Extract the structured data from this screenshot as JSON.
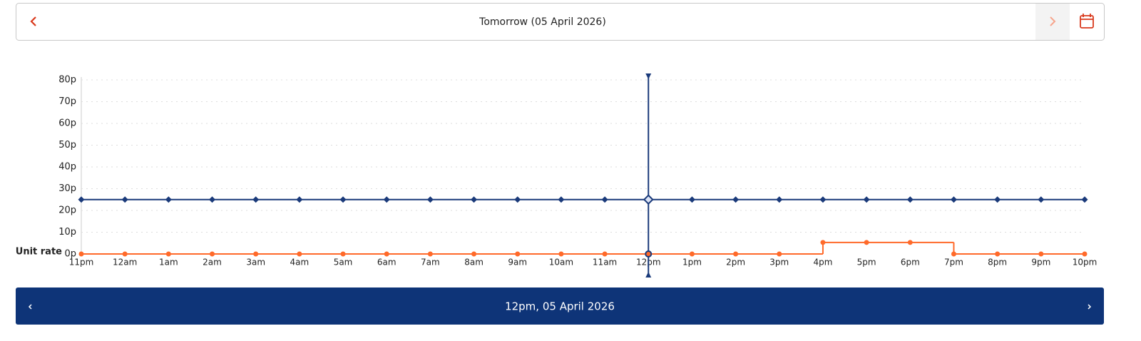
{
  "header": {
    "title": "Tomorrow (05 April 2026)"
  },
  "chart_data": {
    "type": "line",
    "y_label": "Unit rate",
    "categories": [
      "11pm",
      "12am",
      "1am",
      "2am",
      "3am",
      "4am",
      "5am",
      "6am",
      "7am",
      "8am",
      "9am",
      "10am",
      "11am",
      "12pm",
      "1pm",
      "2pm",
      "3pm",
      "4pm",
      "5pm",
      "6pm",
      "7pm",
      "8pm",
      "9pm",
      "10pm"
    ],
    "series": [
      {
        "color": "#1a3a7a",
        "marker": "diamond",
        "step": false,
        "values": [
          25,
          25,
          25,
          25,
          25,
          25,
          25,
          25,
          25,
          25,
          25,
          25,
          25,
          25,
          25,
          25,
          25,
          25,
          25,
          25,
          25,
          25,
          25,
          25
        ]
      },
      {
        "color": "#ff6a2a",
        "marker": "circle",
        "step": true,
        "values": [
          0,
          0,
          0,
          0,
          0,
          0,
          0,
          0,
          0,
          0,
          0,
          0,
          0,
          0,
          0,
          0,
          0,
          5.3,
          5.3,
          5.3,
          0,
          0,
          0,
          0
        ]
      }
    ],
    "ylim": [
      0,
      80
    ],
    "yticks": [
      {
        "value": 0,
        "label": "0p"
      },
      {
        "value": 10,
        "label": "10p"
      },
      {
        "value": 20,
        "label": "20p"
      },
      {
        "value": 30,
        "label": "30p"
      },
      {
        "value": 40,
        "label": "40p"
      },
      {
        "value": 50,
        "label": "50p"
      },
      {
        "value": 60,
        "label": "60p"
      },
      {
        "value": 70,
        "label": "70p"
      },
      {
        "value": 80,
        "label": "80p"
      }
    ],
    "grid": true
  },
  "footer": {
    "title": "12pm, 05 April 2026"
  }
}
